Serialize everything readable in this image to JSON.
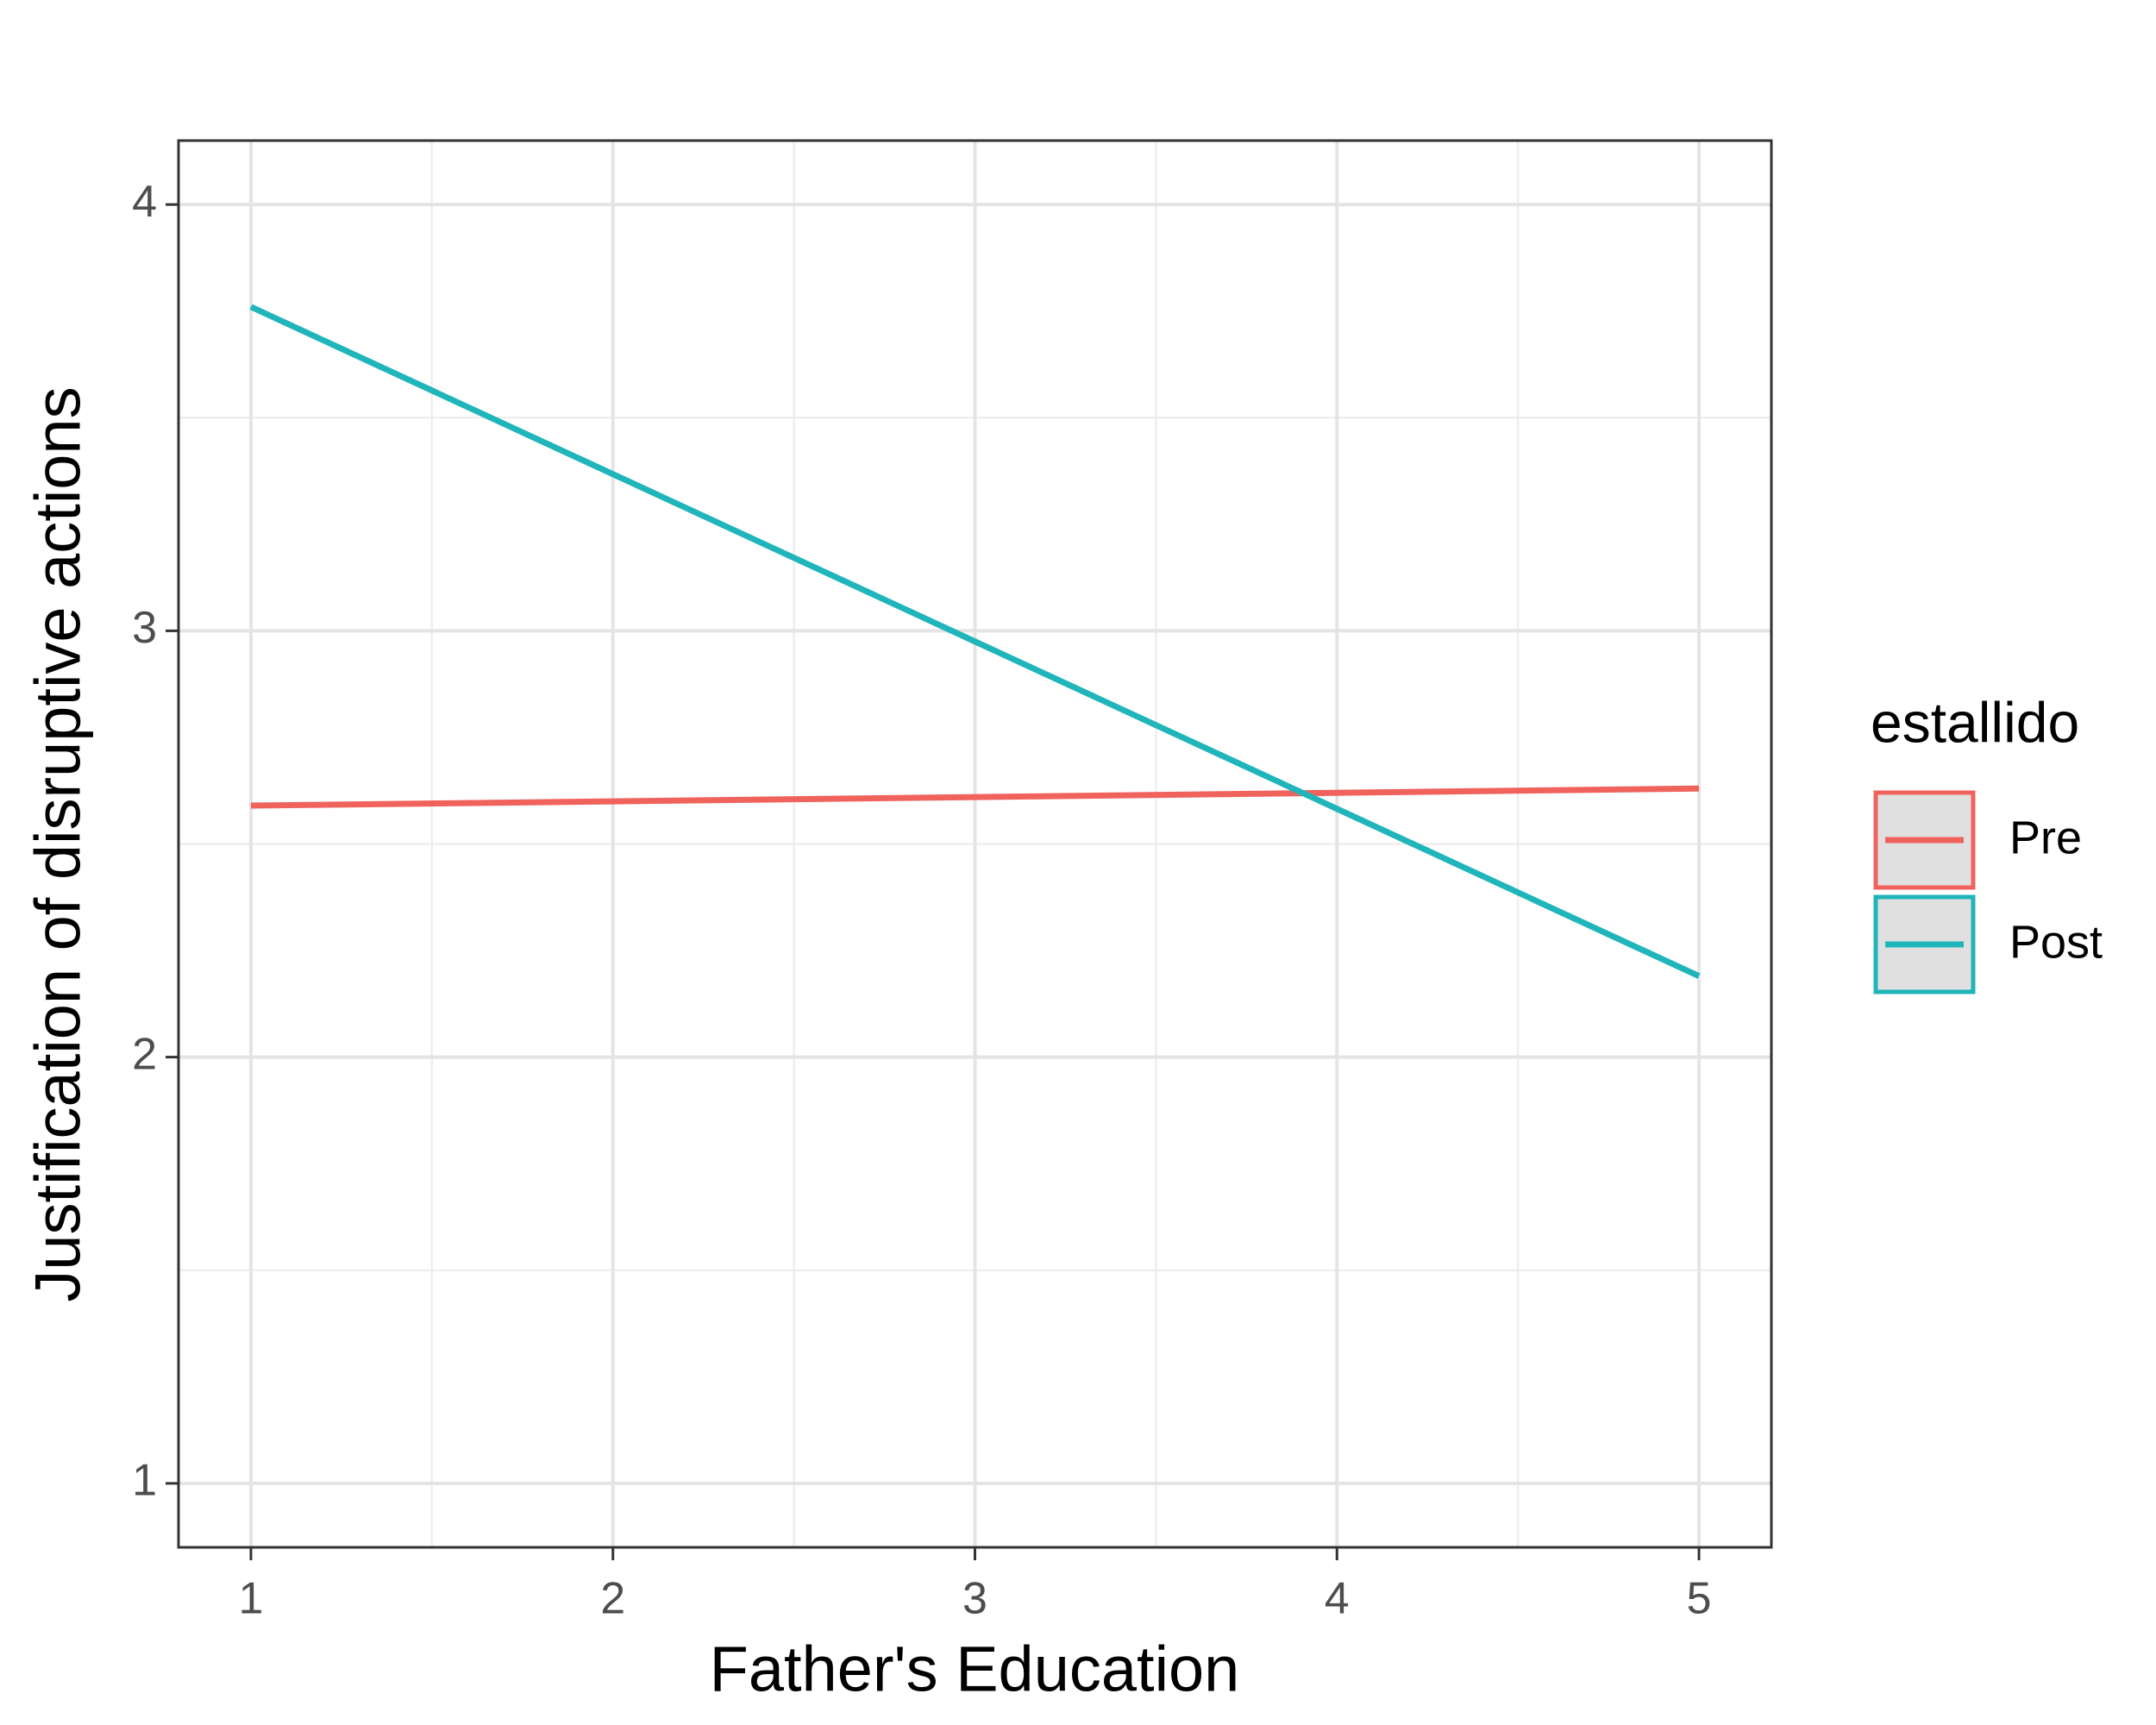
{
  "chart_data": {
    "type": "line",
    "x_label": "Father's Education",
    "y_label": "Justification of disruptive actions",
    "x": [
      1,
      5
    ],
    "series": [
      {
        "name": "Pre",
        "color": "#F0625C",
        "values": [
          2.59,
          2.63
        ]
      },
      {
        "name": "Post",
        "color": "#1FB5BA",
        "values": [
          3.76,
          2.19
        ]
      }
    ],
    "xlim": [
      0.8,
      5.2
    ],
    "xticks": [
      1,
      2,
      3,
      4,
      5
    ],
    "ylim": [
      0.85,
      4.15
    ],
    "yticks": [
      1,
      2,
      3,
      4
    ],
    "grid": true,
    "legend_title": "estallido",
    "legend_position": "right"
  }
}
